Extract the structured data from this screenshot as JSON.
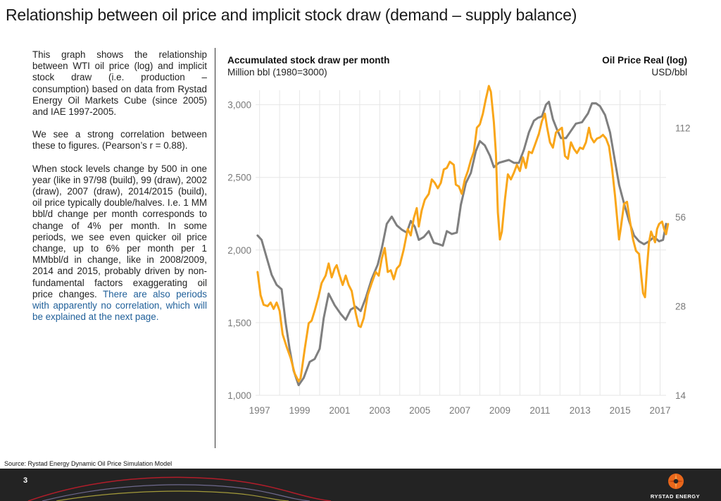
{
  "title": "Relationship between oil price and implicit stock draw (demand – supply balance)",
  "left_panel": {
    "p1": "This graph shows the relationship between WTI oil price (log) and implicit stock draw (i.e. production – consumption) based on data from Rystad Energy Oil Markets Cube (since 2005) and IAE 1997-2005.",
    "p2": "We see a strong correlation between these to figures. (Pearson’s r = 0.88).",
    "p3_main": "When stock levels change by 500 in one year (like in 97/98 (build), 99 (draw), 2002 (draw), 2007 (draw), 2014/2015 (build), oil price typically double/halves. I.e. 1 MM bbl/d change per month corresponds to change of 4% per month.  In some periods, we see even quicker oil price change, up to 6% per month per 1 MMbbl/d in change, like in 2008/2009, 2014 and 2015, probably driven by non-fundamental factors exaggerating oil price changes. ",
    "p3_blue": "There are also periods with apparently no correlation, which will be explained at the next page."
  },
  "chart_header": {
    "left_title": "Accumulated stock draw per month",
    "left_sub": "Million bbl (1980=3000)",
    "right_title": "Oil Price Real (log)",
    "right_sub": "USD/bbl"
  },
  "source": "Source: Rystad Energy Dynamic Oil Price Simulation Model",
  "footer": {
    "page_number": "3",
    "logo_text": "RYSTAD ENERGY"
  },
  "colors": {
    "stock": "#7f7f7f",
    "price": "#f9a61a",
    "grid": "#e6e6e6",
    "axis_text": "#7a7a7a",
    "footer_bg": "#232323"
  },
  "chart_data": {
    "type": "line",
    "x_ticks": [
      "1997",
      "1999",
      "2001",
      "2003",
      "2005",
      "2007",
      "2009",
      "2011",
      "2013",
      "2015",
      "2017"
    ],
    "xlim": [
      1996.8,
      2017.3
    ],
    "y_left": {
      "ticks": [
        "1,000",
        "1,500",
        "2,000",
        "2,500",
        "3,000"
      ],
      "tick_values": [
        1000,
        1500,
        2000,
        2500,
        3000
      ],
      "lim": [
        1000,
        3100
      ]
    },
    "y_right": {
      "ticks": [
        "14",
        "28",
        "56",
        "112"
      ],
      "tick_values": [
        14,
        28,
        56,
        112
      ],
      "lim": [
        14,
        150
      ],
      "scale": "log"
    },
    "grid": true,
    "series": [
      {
        "axis": "left",
        "values": [
          [
            1996.9,
            2100
          ],
          [
            1997.1,
            2070
          ],
          [
            1997.35,
            1950
          ],
          [
            1997.6,
            1830
          ],
          [
            1997.85,
            1760
          ],
          [
            1998.1,
            1730
          ],
          [
            1998.3,
            1500
          ],
          [
            1998.5,
            1320
          ],
          [
            1998.7,
            1170
          ],
          [
            1998.95,
            1070
          ],
          [
            1999.2,
            1120
          ],
          [
            1999.5,
            1230
          ],
          [
            1999.75,
            1250
          ],
          [
            2000.0,
            1320
          ],
          [
            2000.2,
            1530
          ],
          [
            2000.45,
            1700
          ],
          [
            2000.75,
            1620
          ],
          [
            2001.05,
            1560
          ],
          [
            2001.3,
            1520
          ],
          [
            2001.55,
            1590
          ],
          [
            2001.8,
            1610
          ],
          [
            2002.05,
            1580
          ],
          [
            2002.3,
            1670
          ],
          [
            2002.6,
            1800
          ],
          [
            2002.9,
            1900
          ],
          [
            2003.1,
            2010
          ],
          [
            2003.35,
            2180
          ],
          [
            2003.6,
            2230
          ],
          [
            2003.85,
            2170
          ],
          [
            2004.1,
            2140
          ],
          [
            2004.35,
            2120
          ],
          [
            2004.55,
            2200
          ],
          [
            2004.75,
            2160
          ],
          [
            2004.95,
            2070
          ],
          [
            2005.2,
            2090
          ],
          [
            2005.45,
            2130
          ],
          [
            2005.7,
            2050
          ],
          [
            2005.95,
            2040
          ],
          [
            2006.15,
            2030
          ],
          [
            2006.35,
            2130
          ],
          [
            2006.6,
            2110
          ],
          [
            2006.85,
            2120
          ],
          [
            2007.05,
            2310
          ],
          [
            2007.3,
            2460
          ],
          [
            2007.55,
            2530
          ],
          [
            2007.8,
            2680
          ],
          [
            2008.0,
            2750
          ],
          [
            2008.25,
            2720
          ],
          [
            2008.5,
            2650
          ],
          [
            2008.7,
            2570
          ],
          [
            2008.95,
            2600
          ],
          [
            2009.2,
            2610
          ],
          [
            2009.45,
            2620
          ],
          [
            2009.7,
            2600
          ],
          [
            2009.95,
            2600
          ],
          [
            2010.2,
            2690
          ],
          [
            2010.45,
            2810
          ],
          [
            2010.7,
            2890
          ],
          [
            2010.9,
            2910
          ],
          [
            2011.1,
            2920
          ],
          [
            2011.3,
            3000
          ],
          [
            2011.45,
            3020
          ],
          [
            2011.65,
            2900
          ],
          [
            2011.85,
            2830
          ],
          [
            2012.05,
            2770
          ],
          [
            2012.3,
            2770
          ],
          [
            2012.55,
            2820
          ],
          [
            2012.8,
            2870
          ],
          [
            2013.1,
            2880
          ],
          [
            2013.4,
            2940
          ],
          [
            2013.6,
            3010
          ],
          [
            2013.8,
            3010
          ],
          [
            2014.0,
            2990
          ],
          [
            2014.25,
            2930
          ],
          [
            2014.5,
            2810
          ],
          [
            2014.75,
            2610
          ],
          [
            2014.95,
            2450
          ],
          [
            2015.2,
            2320
          ],
          [
            2015.45,
            2200
          ],
          [
            2015.7,
            2100
          ],
          [
            2015.95,
            2060
          ],
          [
            2016.2,
            2040
          ],
          [
            2016.45,
            2060
          ],
          [
            2016.7,
            2090
          ],
          [
            2016.95,
            2060
          ],
          [
            2017.15,
            2070
          ],
          [
            2017.3,
            2180
          ]
        ]
      },
      {
        "axis": "right",
        "values": [
          [
            1996.9,
            36.5
          ],
          [
            1997.05,
            30.5
          ],
          [
            1997.2,
            28.3
          ],
          [
            1997.4,
            28.0
          ],
          [
            1997.55,
            28.8
          ],
          [
            1997.7,
            27.4
          ],
          [
            1997.85,
            28.8
          ],
          [
            1998.0,
            27.0
          ],
          [
            1998.15,
            22.5
          ],
          [
            1998.35,
            20.4
          ],
          [
            1998.55,
            18.7
          ],
          [
            1998.75,
            16.6
          ],
          [
            1998.95,
            15.6
          ],
          [
            1999.05,
            16.0
          ],
          [
            1999.25,
            20.0
          ],
          [
            1999.45,
            24.5
          ],
          [
            1999.6,
            25.0
          ],
          [
            1999.75,
            27.0
          ],
          [
            1999.95,
            30.3
          ],
          [
            2000.1,
            33.5
          ],
          [
            2000.3,
            35.5
          ],
          [
            2000.45,
            39.0
          ],
          [
            2000.6,
            35.0
          ],
          [
            2000.75,
            37.5
          ],
          [
            2000.85,
            38.5
          ],
          [
            2001.0,
            35.5
          ],
          [
            2001.15,
            33.0
          ],
          [
            2001.3,
            35.5
          ],
          [
            2001.45,
            33.0
          ],
          [
            2001.6,
            31.5
          ],
          [
            2001.8,
            26.5
          ],
          [
            2001.95,
            24.0
          ],
          [
            2002.05,
            23.8
          ],
          [
            2002.2,
            25.5
          ],
          [
            2002.4,
            30.5
          ],
          [
            2002.6,
            33.5
          ],
          [
            2002.8,
            36.5
          ],
          [
            2002.95,
            35.5
          ],
          [
            2003.1,
            40.5
          ],
          [
            2003.25,
            44.0
          ],
          [
            2003.4,
            36.5
          ],
          [
            2003.55,
            37.0
          ],
          [
            2003.7,
            34.5
          ],
          [
            2003.85,
            37.5
          ],
          [
            2004.0,
            38.5
          ],
          [
            2004.2,
            43.5
          ],
          [
            2004.4,
            51.0
          ],
          [
            2004.55,
            48.5
          ],
          [
            2004.7,
            55.5
          ],
          [
            2004.85,
            60.0
          ],
          [
            2004.95,
            52.0
          ],
          [
            2005.1,
            59.0
          ],
          [
            2005.25,
            64.0
          ],
          [
            2005.45,
            67.0
          ],
          [
            2005.6,
            75.0
          ],
          [
            2005.75,
            73.0
          ],
          [
            2005.9,
            70.0
          ],
          [
            2006.05,
            73.0
          ],
          [
            2006.2,
            81.0
          ],
          [
            2006.35,
            82.0
          ],
          [
            2006.5,
            86.0
          ],
          [
            2006.7,
            84.0
          ],
          [
            2006.8,
            72.0
          ],
          [
            2006.95,
            71.0
          ],
          [
            2007.1,
            67.0
          ],
          [
            2007.25,
            75.0
          ],
          [
            2007.4,
            80.0
          ],
          [
            2007.55,
            87.0
          ],
          [
            2007.7,
            93.0
          ],
          [
            2007.85,
            112.0
          ],
          [
            2008.0,
            115.0
          ],
          [
            2008.15,
            125.0
          ],
          [
            2008.3,
            140.0
          ],
          [
            2008.45,
            155.0
          ],
          [
            2008.55,
            148.0
          ],
          [
            2008.7,
            117.0
          ],
          [
            2008.8,
            92.0
          ],
          [
            2008.9,
            58.0
          ],
          [
            2009.0,
            47.0
          ],
          [
            2009.1,
            50.0
          ],
          [
            2009.25,
            64.0
          ],
          [
            2009.4,
            78.0
          ],
          [
            2009.55,
            75.0
          ],
          [
            2009.7,
            79.0
          ],
          [
            2009.85,
            84.0
          ],
          [
            2010.0,
            80.0
          ],
          [
            2010.15,
            89.0
          ],
          [
            2010.3,
            82.0
          ],
          [
            2010.45,
            93.0
          ],
          [
            2010.6,
            92.0
          ],
          [
            2010.75,
            98.0
          ],
          [
            2010.95,
            107.0
          ],
          [
            2011.1,
            118.0
          ],
          [
            2011.25,
            125.0
          ],
          [
            2011.35,
            113.0
          ],
          [
            2011.5,
            100.0
          ],
          [
            2011.65,
            96.0
          ],
          [
            2011.8,
            108.0
          ],
          [
            2011.95,
            110.0
          ],
          [
            2012.1,
            112.0
          ],
          [
            2012.25,
            90.0
          ],
          [
            2012.4,
            88.0
          ],
          [
            2012.55,
            100.0
          ],
          [
            2012.7,
            95.0
          ],
          [
            2012.85,
            92.0
          ],
          [
            2013.0,
            96.0
          ],
          [
            2013.15,
            95.0
          ],
          [
            2013.3,
            100.0
          ],
          [
            2013.45,
            112.0
          ],
          [
            2013.55,
            104.0
          ],
          [
            2013.7,
            100.0
          ],
          [
            2013.85,
            103.0
          ],
          [
            2014.0,
            104.0
          ],
          [
            2014.15,
            106.0
          ],
          [
            2014.3,
            103.0
          ],
          [
            2014.45,
            97.0
          ],
          [
            2014.6,
            82.0
          ],
          [
            2014.75,
            66.0
          ],
          [
            2014.85,
            56.0
          ],
          [
            2014.95,
            47.0
          ],
          [
            2015.05,
            52.0
          ],
          [
            2015.2,
            62.0
          ],
          [
            2015.35,
            63.0
          ],
          [
            2015.5,
            54.0
          ],
          [
            2015.65,
            47.0
          ],
          [
            2015.8,
            43.0
          ],
          [
            2015.95,
            42.0
          ],
          [
            2016.05,
            36.0
          ],
          [
            2016.15,
            31.0
          ],
          [
            2016.25,
            30.0
          ],
          [
            2016.35,
            38.0
          ],
          [
            2016.45,
            46.0
          ],
          [
            2016.55,
            50.0
          ],
          [
            2016.65,
            48.0
          ],
          [
            2016.75,
            46.0
          ],
          [
            2016.85,
            51.0
          ],
          [
            2016.95,
            53.0
          ],
          [
            2017.1,
            54.0
          ],
          [
            2017.2,
            51.0
          ],
          [
            2017.3,
            49.0
          ],
          [
            2017.4,
            53.0
          ]
        ]
      }
    ]
  }
}
